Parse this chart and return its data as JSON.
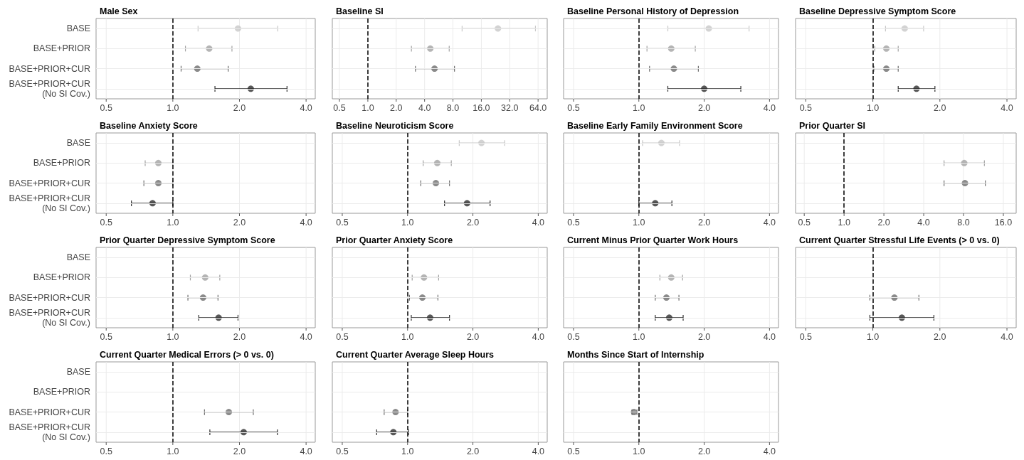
{
  "chart_data": [
    {
      "type": "scatter",
      "orientation": "horizontal",
      "title": "Male Sex",
      "categories": [
        "BASE",
        "BASE+PRIOR",
        "BASE+PRIOR+CUR",
        "BASE+PRIOR+CUR\n(No SI Cov.)"
      ],
      "values": [
        1.97,
        1.46,
        1.29,
        2.25
      ],
      "errors": [
        [
          1.3,
          2.98
        ],
        [
          1.14,
          1.85
        ],
        [
          1.09,
          1.78
        ],
        [
          1.55,
          3.28
        ]
      ],
      "colors": [
        "#c8c8c8",
        "#a3a3a3",
        "#6e6e6e",
        "#2e2e2e"
      ],
      "log": "x",
      "xlim": [
        0.45,
        4.4
      ],
      "xticks": [
        {
          "value": 0.5,
          "label": "0.5"
        },
        {
          "value": 1,
          "label": "1.0"
        },
        {
          "value": 2,
          "label": "2.0"
        },
        {
          "value": 4,
          "label": "4.0"
        }
      ],
      "ref_lines": [
        {
          "axis": "x",
          "value": 1,
          "color": "#000000",
          "line_style": "dashed"
        }
      ],
      "grid": true,
      "marker": "circle"
    },
    {
      "type": "scatter",
      "orientation": "horizontal",
      "title": "Baseline SI",
      "categories": [
        null,
        null,
        null,
        null
      ],
      "values": [
        24,
        4.6,
        5.1,
        null
      ],
      "errors": [
        [
          10,
          60
        ],
        [
          2.9,
          7.3
        ],
        [
          3.2,
          8.3
        ],
        null
      ],
      "colors": [
        "#c8c8c8",
        "#a3a3a3",
        "#6e6e6e",
        null
      ],
      "log": "x",
      "xlim": [
        0.42,
        80
      ],
      "xticks": [
        {
          "value": 0.5,
          "label": "0.5"
        },
        {
          "value": 1,
          "label": "1.0"
        },
        {
          "value": 2,
          "label": "2.0"
        },
        {
          "value": 4,
          "label": "4.0"
        },
        {
          "value": 8,
          "label": "8.0"
        },
        {
          "value": 16,
          "label": "16.0"
        },
        {
          "value": 32,
          "label": "32.0"
        },
        {
          "value": 64,
          "label": "64.0"
        }
      ],
      "ref_lines": [
        {
          "axis": "x",
          "value": 1,
          "color": "#000000",
          "line_style": "dashed"
        }
      ],
      "grid": true,
      "marker": "circle",
      "tick_labels": "x"
    },
    {
      "type": "scatter",
      "orientation": "horizontal",
      "title": "Baseline Personal History of Depression",
      "categories": [
        null,
        null,
        null,
        null
      ],
      "values": [
        2.1,
        1.41,
        1.45,
        2.0
      ],
      "errors": [
        [
          1.36,
          3.22
        ],
        [
          1.09,
          1.82
        ],
        [
          1.12,
          1.88
        ],
        [
          1.36,
          2.95
        ]
      ],
      "colors": [
        "#c8c8c8",
        "#a3a3a3",
        "#6e6e6e",
        "#2e2e2e"
      ],
      "log": "x",
      "xlim": [
        0.45,
        4.4
      ],
      "xticks": [
        {
          "value": 0.5,
          "label": "0.5"
        },
        {
          "value": 1,
          "label": "1.0"
        },
        {
          "value": 2,
          "label": "2.0"
        },
        {
          "value": 4,
          "label": "4.0"
        }
      ],
      "ref_lines": [
        {
          "axis": "x",
          "value": 1,
          "color": "#000000",
          "line_style": "dashed"
        }
      ],
      "grid": true,
      "marker": "circle",
      "tick_labels": "x"
    },
    {
      "type": "scatter",
      "orientation": "horizontal",
      "title": "Baseline Depressive Symptom Score",
      "categories": [
        null,
        null,
        null,
        null
      ],
      "values": [
        1.39,
        1.15,
        1.15,
        1.57
      ],
      "errors": [
        [
          1.14,
          1.69
        ],
        [
          1.02,
          1.3
        ],
        [
          1.01,
          1.3
        ],
        [
          1.3,
          1.9
        ]
      ],
      "colors": [
        "#c8c8c8",
        "#a3a3a3",
        "#6e6e6e",
        "#2e2e2e"
      ],
      "log": "x",
      "xlim": [
        0.45,
        4.4
      ],
      "xticks": [
        {
          "value": 0.5,
          "label": "0.5"
        },
        {
          "value": 1,
          "label": "1.0"
        },
        {
          "value": 2,
          "label": "2.0"
        },
        {
          "value": 4,
          "label": "4.0"
        }
      ],
      "ref_lines": [
        {
          "axis": "x",
          "value": 1,
          "color": "#000000",
          "line_style": "dashed"
        }
      ],
      "grid": true,
      "marker": "circle",
      "tick_labels": "x"
    },
    {
      "type": "scatter",
      "orientation": "horizontal",
      "title": "Baseline Anxiety Score",
      "categories": [
        "BASE",
        "BASE+PRIOR",
        "BASE+PRIOR+CUR",
        "BASE+PRIOR+CUR\n(No SI Cov.)"
      ],
      "values": [
        null,
        0.86,
        0.86,
        0.81
      ],
      "errors": [
        null,
        [
          0.75,
          1.0
        ],
        [
          0.74,
          1.0
        ],
        [
          0.65,
          1.0
        ]
      ],
      "colors": [
        null,
        "#a3a3a3",
        "#6e6e6e",
        "#2e2e2e"
      ],
      "log": "x",
      "xlim": [
        0.45,
        4.4
      ],
      "xticks": [
        {
          "value": 0.5,
          "label": "0.5"
        },
        {
          "value": 1,
          "label": "1.0"
        },
        {
          "value": 2,
          "label": "2.0"
        },
        {
          "value": 4,
          "label": "4.0"
        }
      ],
      "ref_lines": [
        {
          "axis": "x",
          "value": 1,
          "color": "#000000",
          "line_style": "dashed"
        }
      ],
      "grid": true,
      "marker": "circle"
    },
    {
      "type": "scatter",
      "orientation": "horizontal",
      "title": "Baseline Neuroticism Score",
      "categories": [
        null,
        null,
        null,
        null
      ],
      "values": [
        2.19,
        1.37,
        1.35,
        1.88
      ],
      "errors": [
        [
          1.73,
          2.8
        ],
        [
          1.18,
          1.59
        ],
        [
          1.15,
          1.56
        ],
        [
          1.48,
          2.4
        ]
      ],
      "colors": [
        "#c8c8c8",
        "#a3a3a3",
        "#6e6e6e",
        "#2e2e2e"
      ],
      "log": "x",
      "xlim": [
        0.45,
        4.4
      ],
      "xticks": [
        {
          "value": 0.5,
          "label": "0.5"
        },
        {
          "value": 1,
          "label": "1.0"
        },
        {
          "value": 2,
          "label": "2.0"
        },
        {
          "value": 4,
          "label": "4.0"
        }
      ],
      "ref_lines": [
        {
          "axis": "x",
          "value": 1,
          "color": "#000000",
          "line_style": "dashed"
        }
      ],
      "grid": true,
      "marker": "circle",
      "tick_labels": "x"
    },
    {
      "type": "scatter",
      "orientation": "horizontal",
      "title": "Baseline Early Family Environment Score",
      "categories": [
        null,
        null,
        null,
        null
      ],
      "values": [
        1.27,
        null,
        null,
        1.19
      ],
      "errors": [
        [
          1.04,
          1.54
        ],
        null,
        null,
        [
          1.0,
          1.42
        ]
      ],
      "colors": [
        "#c8c8c8",
        null,
        null,
        "#2e2e2e"
      ],
      "log": "x",
      "xlim": [
        0.45,
        4.4
      ],
      "xticks": [
        {
          "value": 0.5,
          "label": "0.5"
        },
        {
          "value": 1,
          "label": "1.0"
        },
        {
          "value": 2,
          "label": "2.0"
        },
        {
          "value": 4,
          "label": "4.0"
        }
      ],
      "ref_lines": [
        {
          "axis": "x",
          "value": 1,
          "color": "#000000",
          "line_style": "dashed"
        }
      ],
      "grid": true,
      "marker": "circle",
      "tick_labels": "x"
    },
    {
      "type": "scatter",
      "orientation": "horizontal",
      "title": "Prior Quarter SI",
      "categories": [
        null,
        null,
        null,
        null
      ],
      "values": [
        null,
        8.1,
        8.2,
        null
      ],
      "errors": [
        null,
        [
          5.7,
          11.5
        ],
        [
          5.7,
          11.7
        ],
        null
      ],
      "colors": [
        null,
        "#a3a3a3",
        "#6e6e6e",
        null
      ],
      "log": "x",
      "xlim": [
        0.43,
        20
      ],
      "xticks": [
        {
          "value": 0.5,
          "label": "0.5"
        },
        {
          "value": 1,
          "label": "1.0"
        },
        {
          "value": 2,
          "label": "2.0"
        },
        {
          "value": 4,
          "label": "4.0"
        },
        {
          "value": 8,
          "label": "8.0"
        },
        {
          "value": 16,
          "label": "16.0"
        }
      ],
      "ref_lines": [
        {
          "axis": "x",
          "value": 1,
          "color": "#000000",
          "line_style": "dashed"
        }
      ],
      "grid": true,
      "marker": "circle",
      "tick_labels": "x"
    },
    {
      "type": "scatter",
      "orientation": "horizontal",
      "title": "Prior Quarter Depressive Symptom Score",
      "categories": [
        "BASE",
        "BASE+PRIOR",
        "BASE+PRIOR+CUR",
        "BASE+PRIOR+CUR\n(No SI Cov.)"
      ],
      "values": [
        null,
        1.4,
        1.37,
        1.61
      ],
      "errors": [
        null,
        [
          1.2,
          1.63
        ],
        [
          1.17,
          1.6
        ],
        [
          1.31,
          1.97
        ]
      ],
      "colors": [
        null,
        "#a3a3a3",
        "#6e6e6e",
        "#2e2e2e"
      ],
      "log": "x",
      "xlim": [
        0.45,
        4.4
      ],
      "xticks": [
        {
          "value": 0.5,
          "label": "0.5"
        },
        {
          "value": 1,
          "label": "1.0"
        },
        {
          "value": 2,
          "label": "2.0"
        },
        {
          "value": 4,
          "label": "4.0"
        }
      ],
      "ref_lines": [
        {
          "axis": "x",
          "value": 1,
          "color": "#000000",
          "line_style": "dashed"
        }
      ],
      "grid": true,
      "marker": "circle"
    },
    {
      "type": "scatter",
      "orientation": "horizontal",
      "title": "Prior Quarter Anxiety Score",
      "categories": [
        null,
        null,
        null,
        null
      ],
      "values": [
        null,
        1.19,
        1.17,
        1.27
      ],
      "errors": [
        null,
        [
          1.05,
          1.39
        ],
        [
          1.02,
          1.38
        ],
        [
          1.04,
          1.56
        ]
      ],
      "colors": [
        null,
        "#a3a3a3",
        "#6e6e6e",
        "#2e2e2e"
      ],
      "log": "x",
      "xlim": [
        0.45,
        4.4
      ],
      "xticks": [
        {
          "value": 0.5,
          "label": "0.5"
        },
        {
          "value": 1,
          "label": "1.0"
        },
        {
          "value": 2,
          "label": "2.0"
        },
        {
          "value": 4,
          "label": "4.0"
        }
      ],
      "ref_lines": [
        {
          "axis": "x",
          "value": 1,
          "color": "#000000",
          "line_style": "dashed"
        }
      ],
      "grid": true,
      "marker": "circle",
      "tick_labels": "x"
    },
    {
      "type": "scatter",
      "orientation": "horizontal",
      "title": "Current Minus Prior Quarter Work Hours",
      "categories": [
        null,
        null,
        null,
        null
      ],
      "values": [
        null,
        1.41,
        1.34,
        1.38
      ],
      "errors": [
        null,
        [
          1.25,
          1.59
        ],
        [
          1.19,
          1.53
        ],
        [
          1.19,
          1.6
        ]
      ],
      "colors": [
        null,
        "#a3a3a3",
        "#6e6e6e",
        "#2e2e2e"
      ],
      "log": "x",
      "xlim": [
        0.45,
        4.4
      ],
      "xticks": [
        {
          "value": 0.5,
          "label": "0.5"
        },
        {
          "value": 1,
          "label": "1.0"
        },
        {
          "value": 2,
          "label": "2.0"
        },
        {
          "value": 4,
          "label": "4.0"
        }
      ],
      "ref_lines": [
        {
          "axis": "x",
          "value": 1,
          "color": "#000000",
          "line_style": "dashed"
        }
      ],
      "grid": true,
      "marker": "circle",
      "tick_labels": "x"
    },
    {
      "type": "scatter",
      "orientation": "horizontal",
      "title": "Current Quarter Stressful Life Events (> 0 vs. 0)",
      "categories": [
        null,
        null,
        null,
        null
      ],
      "values": [
        null,
        null,
        1.25,
        1.35
      ],
      "errors": [
        null,
        null,
        [
          0.97,
          1.61
        ],
        [
          0.97,
          1.88
        ]
      ],
      "colors": [
        null,
        null,
        "#6e6e6e",
        "#2e2e2e"
      ],
      "log": "x",
      "xlim": [
        0.45,
        4.4
      ],
      "xticks": [
        {
          "value": 0.5,
          "label": "0.5"
        },
        {
          "value": 1,
          "label": "1.0"
        },
        {
          "value": 2,
          "label": "2.0"
        },
        {
          "value": 4,
          "label": "4.0"
        }
      ],
      "ref_lines": [
        {
          "axis": "x",
          "value": 1,
          "color": "#000000",
          "line_style": "dashed"
        }
      ],
      "grid": true,
      "marker": "circle",
      "tick_labels": "x"
    },
    {
      "type": "scatter",
      "orientation": "horizontal",
      "title": "Current Quarter Medical Errors (> 0 vs. 0)",
      "categories": [
        "BASE",
        "BASE+PRIOR",
        "BASE+PRIOR+CUR",
        "BASE+PRIOR+CUR\n(No SI Cov.)"
      ],
      "values": [
        null,
        null,
        1.79,
        2.09
      ],
      "errors": [
        null,
        null,
        [
          1.39,
          2.31
        ],
        [
          1.47,
          2.97
        ]
      ],
      "colors": [
        null,
        null,
        "#6e6e6e",
        "#2e2e2e"
      ],
      "log": "x",
      "xlim": [
        0.45,
        4.4
      ],
      "xticks": [
        {
          "value": 0.5,
          "label": "0.5"
        },
        {
          "value": 1,
          "label": "1.0"
        },
        {
          "value": 2,
          "label": "2.0"
        },
        {
          "value": 4,
          "label": "4.0"
        }
      ],
      "ref_lines": [
        {
          "axis": "x",
          "value": 1,
          "color": "#000000",
          "line_style": "dashed"
        }
      ],
      "grid": true,
      "marker": "circle"
    },
    {
      "type": "scatter",
      "orientation": "horizontal",
      "title": "Current Quarter Average Sleep Hours",
      "categories": [
        null,
        null,
        null,
        null
      ],
      "values": [
        null,
        null,
        0.88,
        0.86
      ],
      "errors": [
        null,
        null,
        [
          0.78,
          1.0
        ],
        [
          0.72,
          1.01
        ]
      ],
      "colors": [
        null,
        null,
        "#6e6e6e",
        "#2e2e2e"
      ],
      "log": "x",
      "xlim": [
        0.45,
        4.4
      ],
      "xticks": [
        {
          "value": 0.5,
          "label": "0.5"
        },
        {
          "value": 1,
          "label": "1.0"
        },
        {
          "value": 2,
          "label": "2.0"
        },
        {
          "value": 4,
          "label": "4.0"
        }
      ],
      "ref_lines": [
        {
          "axis": "x",
          "value": 1,
          "color": "#000000",
          "line_style": "dashed"
        }
      ],
      "grid": true,
      "marker": "circle",
      "tick_labels": "x"
    },
    {
      "type": "scatter",
      "orientation": "horizontal",
      "title": "Months Since Start of Internship",
      "categories": [
        null,
        null,
        null,
        null
      ],
      "values": [
        null,
        null,
        0.95,
        null
      ],
      "errors": [
        null,
        null,
        [
          0.93,
          0.98
        ],
        null
      ],
      "colors": [
        null,
        null,
        "#6e6e6e",
        null
      ],
      "log": "x",
      "xlim": [
        0.45,
        4.4
      ],
      "xticks": [
        {
          "value": 0.5,
          "label": "0.5"
        },
        {
          "value": 1,
          "label": "1.0"
        },
        {
          "value": 2,
          "label": "2.0"
        },
        {
          "value": 4,
          "label": "4.0"
        }
      ],
      "ref_lines": [
        {
          "axis": "x",
          "value": 1,
          "color": "#000000",
          "line_style": "dashed"
        }
      ],
      "grid": true,
      "marker": "circle",
      "tick_labels": "x"
    }
  ]
}
